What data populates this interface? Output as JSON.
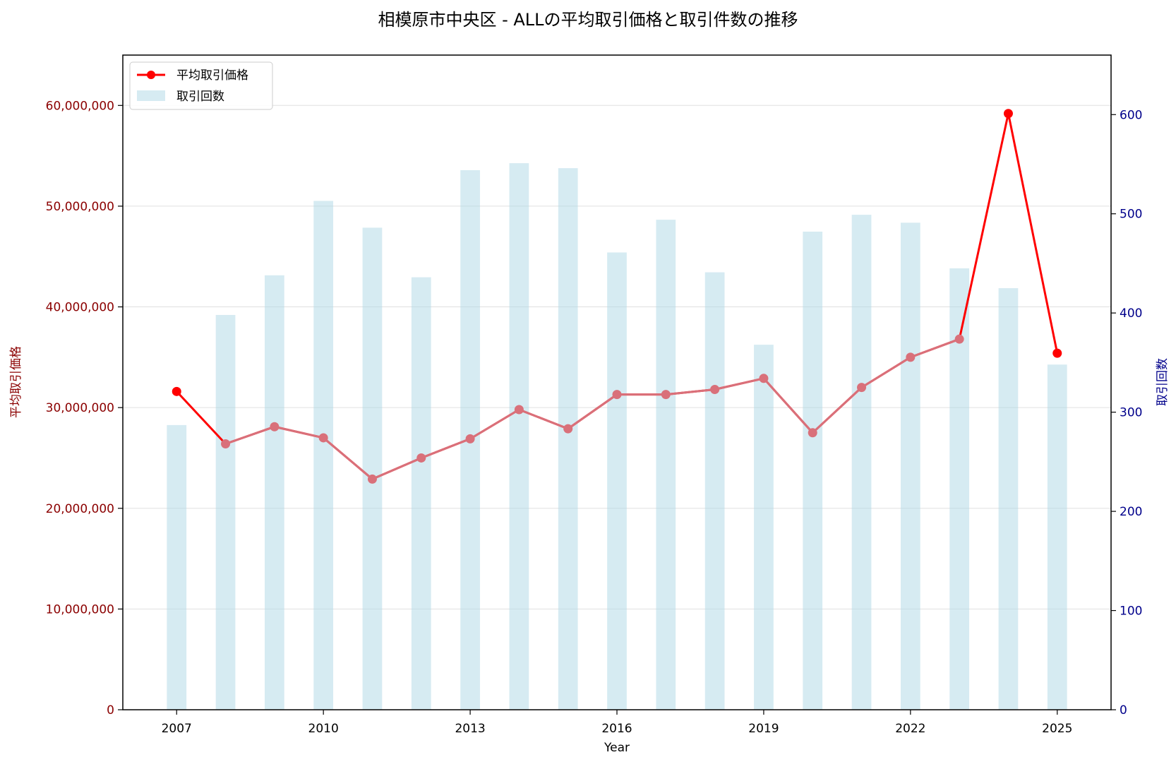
{
  "chart_data": {
    "type": "bar+line",
    "title": "相模原市中央区 - ALLの平均取引価格と取引件数の推移",
    "xlabel": "Year",
    "ylabel_left": "平均取引価格",
    "ylabel_right": "取引回数",
    "x": [
      2007,
      2008,
      2009,
      2010,
      2011,
      2012,
      2013,
      2014,
      2015,
      2016,
      2017,
      2018,
      2019,
      2020,
      2021,
      2022,
      2023,
      2024,
      2025
    ],
    "x_ticks": [
      "2007",
      "2010",
      "2013",
      "2016",
      "2019",
      "2022",
      "2025"
    ],
    "xlim": [
      2005.9,
      2026.1
    ],
    "ylim_left": [
      0,
      65000000
    ],
    "ylim_right": [
      0,
      660
    ],
    "y_ticks_left": [
      "0",
      "10,000,000",
      "20,000,000",
      "30,000,000",
      "40,000,000",
      "50,000,000",
      "60,000,000"
    ],
    "y_ticks_right": [
      "0",
      "100",
      "200",
      "300",
      "400",
      "500",
      "600"
    ],
    "grid": true,
    "legend_position": "top-left",
    "series": [
      {
        "name": "平均取引価格",
        "type": "line",
        "axis": "left",
        "color": "#ff0000",
        "values": [
          31600000,
          26400000,
          28100000,
          27000000,
          22900000,
          25000000,
          26900000,
          29800000,
          27900000,
          31300000,
          31300000,
          31800000,
          32900000,
          27500000,
          32000000,
          35000000,
          36800000,
          59200000,
          35400000
        ]
      },
      {
        "name": "取引回数",
        "type": "bar",
        "axis": "right",
        "color": "#add8e6",
        "values": [
          287,
          398,
          438,
          513,
          486,
          436,
          544,
          551,
          546,
          461,
          494,
          441,
          368,
          482,
          499,
          491,
          445,
          425,
          348
        ]
      }
    ],
    "colors": {
      "left_axis": "#8b0000",
      "right_axis": "#00008b",
      "overlap_marker": "#d9707a"
    }
  }
}
